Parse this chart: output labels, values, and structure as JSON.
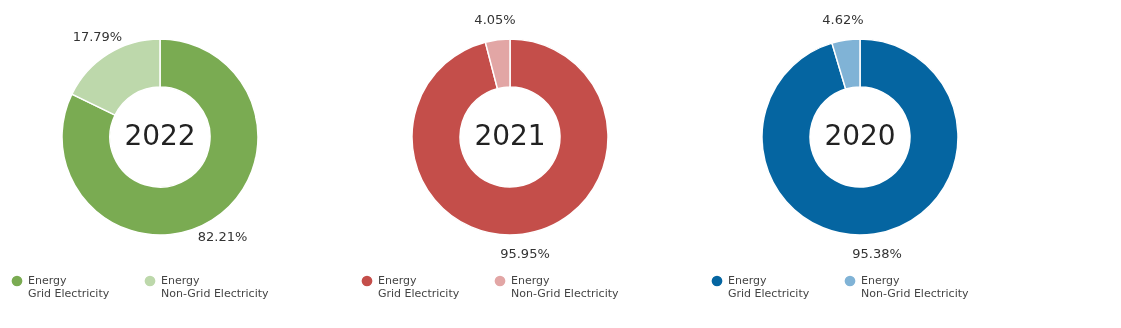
{
  "chart_data": [
    {
      "type": "donut",
      "title": "2022",
      "categories": [
        "Energy\nGrid Electricity",
        "Energy\nNon-Grid Electricity"
      ],
      "values": [
        82.21,
        17.79
      ],
      "value_labels": [
        "82.21%",
        "17.79%"
      ],
      "colors": [
        "#7aab52",
        "#bdd8ab"
      ],
      "legend": "bottom"
    },
    {
      "type": "donut",
      "title": "2021",
      "categories": [
        "Energy\nGrid Electricity",
        "Energy\nNon-Grid Electricity"
      ],
      "values": [
        95.95,
        4.05
      ],
      "value_labels": [
        "95.95%",
        "4.05%"
      ],
      "colors": [
        "#c44e4a",
        "#e2a6a5"
      ],
      "legend": "bottom"
    },
    {
      "type": "donut",
      "title": "2020",
      "categories": [
        "Energy\nGrid Electricity",
        "Energy\nNon-Grid Electricity"
      ],
      "values": [
        95.38,
        4.62
      ],
      "value_labels": [
        "95.38%",
        "4.62%"
      ],
      "colors": [
        "#0565a1",
        "#80b3d6"
      ],
      "legend": "bottom"
    }
  ]
}
